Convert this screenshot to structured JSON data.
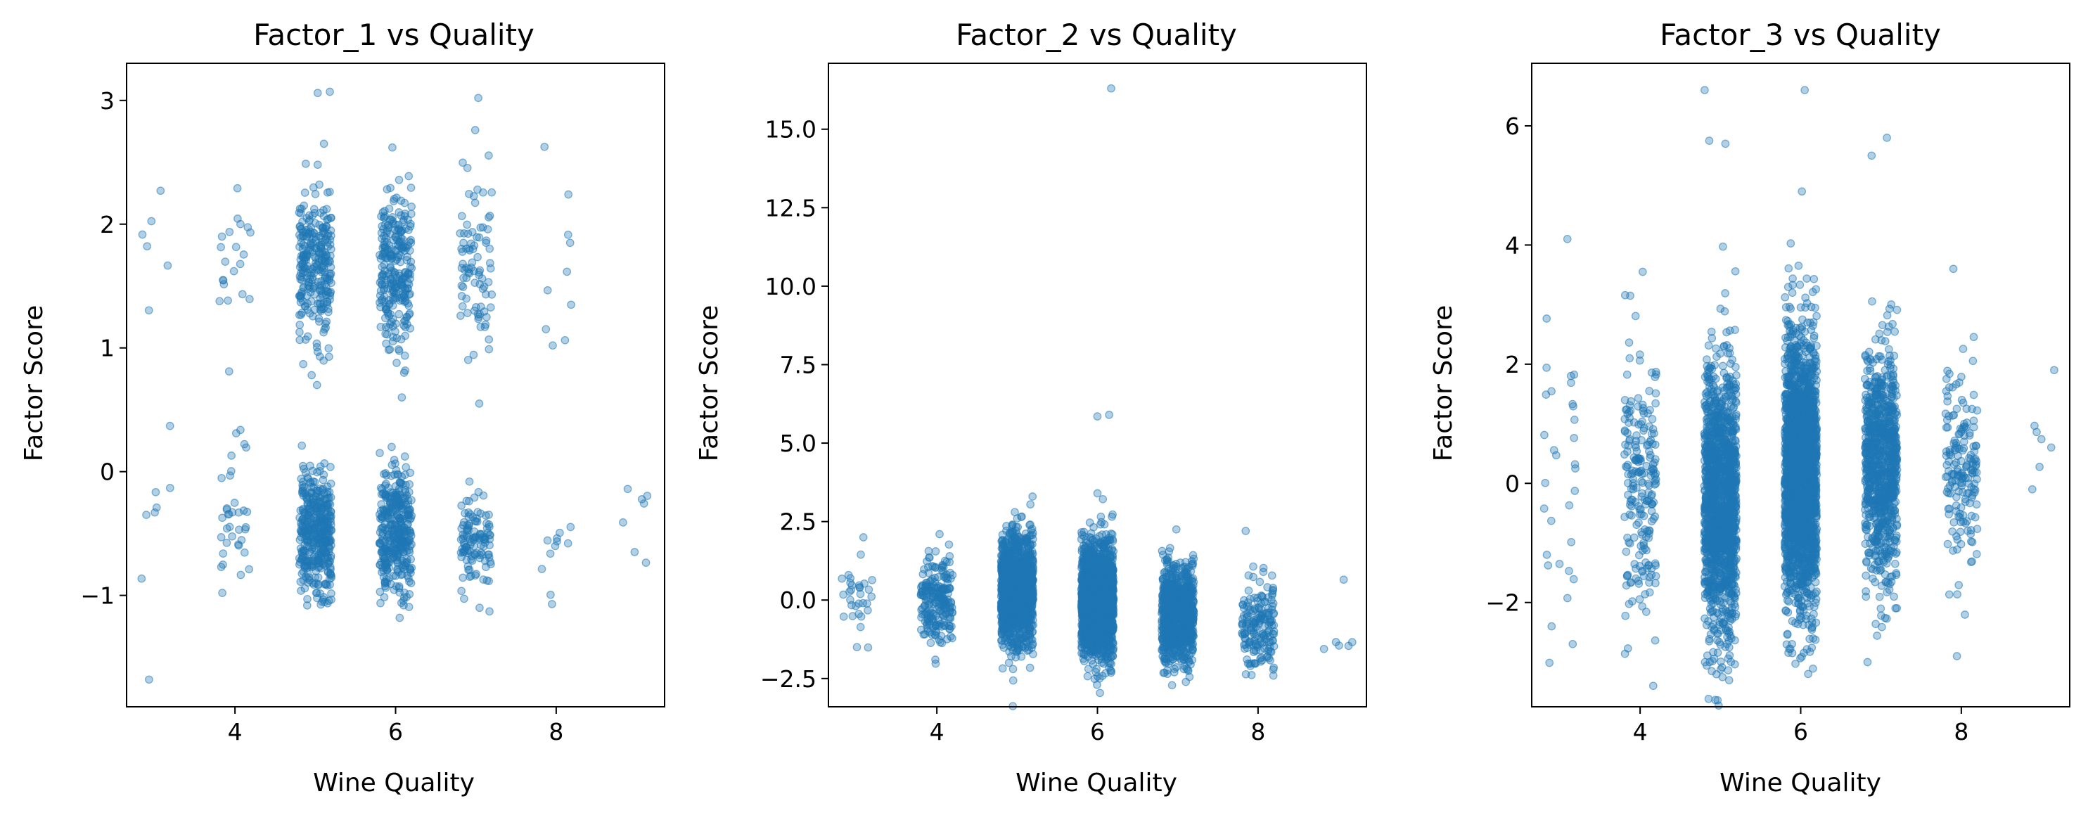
{
  "chart_data": [
    {
      "type": "scatter",
      "title": "Factor_1 vs Quality",
      "xlabel": "Wine Quality",
      "ylabel": "Factor Score",
      "xlim": [
        2.65,
        9.35
      ],
      "ylim": [
        -1.9,
        3.3
      ],
      "xticks": [
        4,
        6,
        8
      ],
      "yticks": [
        -1,
        0,
        1,
        2,
        3
      ],
      "ytick_labels": [
        "−1",
        "0",
        "1",
        "2",
        "3"
      ],
      "point_color": "#1f77b4",
      "groups": [
        {
          "quality": 3,
          "count": 10,
          "clusters": [
            {
              "mean": 1.85,
              "sd": 0.28,
              "frac": 0.45
            },
            {
              "mean": -0.4,
              "sd": 0.35,
              "frac": 0.55
            }
          ],
          "extremes": [
            -1.68,
            2.27,
            0.37
          ]
        },
        {
          "quality": 4,
          "count": 53,
          "clusters": [
            {
              "mean": 1.7,
              "sd": 0.28,
              "frac": 0.35
            },
            {
              "mean": -0.35,
              "sd": 0.28,
              "frac": 0.65
            }
          ],
          "extremes": [
            2.29,
            0.81,
            0.31,
            -0.98
          ]
        },
        {
          "quality": 5,
          "count": 681,
          "clusters": [
            {
              "mean": 1.65,
              "sd": 0.3,
              "frac": 0.4
            },
            {
              "mean": -0.5,
              "sd": 0.25,
              "frac": 0.6
            }
          ],
          "extremes": [
            3.07,
            3.06,
            2.65,
            0.7,
            0.21,
            -1.03
          ]
        },
        {
          "quality": 6,
          "count": 638,
          "clusters": [
            {
              "mean": 1.65,
              "sd": 0.33,
              "frac": 0.42
            },
            {
              "mean": -0.5,
              "sd": 0.25,
              "frac": 0.58
            }
          ],
          "extremes": [
            2.62,
            0.6,
            0.2,
            -1.08
          ]
        },
        {
          "quality": 7,
          "count": 199,
          "clusters": [
            {
              "mean": 1.65,
              "sd": 0.35,
              "frac": 0.42
            },
            {
              "mean": -0.55,
              "sd": 0.2,
              "frac": 0.58
            }
          ],
          "extremes": [
            3.02,
            2.76,
            0.55,
            -1.1
          ]
        },
        {
          "quality": 8,
          "count": 18,
          "clusters": [
            {
              "mean": 1.7,
              "sd": 0.35,
              "frac": 0.45
            },
            {
              "mean": -0.6,
              "sd": 0.25,
              "frac": 0.55
            }
          ],
          "extremes": [
            2.24,
            1.02,
            -1.07
          ]
        },
        {
          "quality": 9,
          "count": 5,
          "clusters": [
            {
              "mean": -0.45,
              "sd": 0.15,
              "frac": 1
            }
          ],
          "extremes": [
            -0.14,
            -0.65
          ]
        }
      ]
    },
    {
      "type": "scatter",
      "title": "Factor_2 vs Quality",
      "xlabel": "Wine Quality",
      "ylabel": "Factor Score",
      "xlim": [
        2.65,
        9.35
      ],
      "ylim": [
        -3.4,
        17.1
      ],
      "xticks": [
        4,
        6,
        8
      ],
      "yticks": [
        -2.5,
        0,
        2.5,
        5,
        7.5,
        10,
        12.5,
        15
      ],
      "ytick_labels": [
        "−2.5",
        "0.0",
        "2.5",
        "5.0",
        "7.5",
        "10.0",
        "12.5",
        "15.0"
      ],
      "point_color": "#1f77b4",
      "groups": [
        {
          "quality": 3,
          "count": 30,
          "clusters": [
            {
              "mean": 0.2,
              "sd": 0.75,
              "frac": 1
            }
          ],
          "extremes": [
            2.0,
            -1.5
          ]
        },
        {
          "quality": 4,
          "count": 216,
          "clusters": [
            {
              "mean": -0.1,
              "sd": 0.7,
              "frac": 1
            }
          ],
          "extremes": [
            2.1,
            -1.9
          ]
        },
        {
          "quality": 5,
          "count": 1457,
          "clusters": [
            {
              "mean": 0.3,
              "sd": 0.85,
              "frac": 1
            }
          ],
          "extremes": [
            3.3,
            -2.2
          ]
        },
        {
          "quality": 6,
          "count": 2198,
          "clusters": [
            {
              "mean": 0.0,
              "sd": 0.85,
              "frac": 1
            }
          ],
          "extremes": [
            16.3,
            5.9,
            5.85,
            3.4,
            -2.5
          ]
        },
        {
          "quality": 7,
          "count": 880,
          "clusters": [
            {
              "mean": -0.4,
              "sd": 0.75,
              "frac": 1
            }
          ],
          "extremes": [
            2.25,
            -2.3
          ]
        },
        {
          "quality": 8,
          "count": 175,
          "clusters": [
            {
              "mean": -0.8,
              "sd": 0.7,
              "frac": 1
            }
          ],
          "extremes": [
            2.2,
            -2.1
          ]
        },
        {
          "quality": 9,
          "count": 5,
          "clusters": [
            {
              "mean": -1.4,
              "sd": 0.15,
              "frac": 1
            }
          ],
          "extremes": [
            0.65
          ]
        }
      ]
    },
    {
      "type": "scatter",
      "title": "Factor_3 vs Quality",
      "xlabel": "Wine Quality",
      "ylabel": "Factor Score",
      "xlim": [
        2.65,
        9.35
      ],
      "ylim": [
        -3.75,
        7.05
      ],
      "xticks": [
        4,
        6,
        8
      ],
      "yticks": [
        -2,
        0,
        2,
        4,
        6
      ],
      "ytick_labels": [
        "−2",
        "0",
        "2",
        "4",
        "6"
      ],
      "point_color": "#1f77b4",
      "groups": [
        {
          "quality": 3,
          "count": 30,
          "clusters": [
            {
              "mean": 0.3,
              "sd": 1.3,
              "frac": 1
            }
          ],
          "extremes": [
            4.1,
            -2.4
          ]
        },
        {
          "quality": 4,
          "count": 216,
          "clusters": [
            {
              "mean": -0.1,
              "sd": 1.1,
              "frac": 1
            }
          ],
          "extremes": [
            3.55,
            -3.4
          ]
        },
        {
          "quality": 5,
          "count": 1457,
          "clusters": [
            {
              "mean": -0.3,
              "sd": 1.15,
              "frac": 1
            }
          ],
          "extremes": [
            6.6,
            5.75,
            5.7,
            -3.0
          ]
        },
        {
          "quality": 6,
          "count": 2198,
          "clusters": [
            {
              "mean": 0.2,
              "sd": 1.1,
              "frac": 1
            }
          ],
          "extremes": [
            6.6,
            4.9,
            -3.2
          ]
        },
        {
          "quality": 7,
          "count": 880,
          "clusters": [
            {
              "mean": 0.3,
              "sd": 0.95,
              "frac": 1
            }
          ],
          "extremes": [
            5.8,
            5.5,
            -3.0
          ]
        },
        {
          "quality": 8,
          "count": 175,
          "clusters": [
            {
              "mean": 0.2,
              "sd": 0.85,
              "frac": 1
            }
          ],
          "extremes": [
            3.6,
            -2.9
          ]
        },
        {
          "quality": 9,
          "count": 5,
          "clusters": [
            {
              "mean": 0.5,
              "sd": 0.5,
              "frac": 1
            }
          ],
          "extremes": [
            1.9,
            -0.1
          ]
        }
      ]
    }
  ]
}
